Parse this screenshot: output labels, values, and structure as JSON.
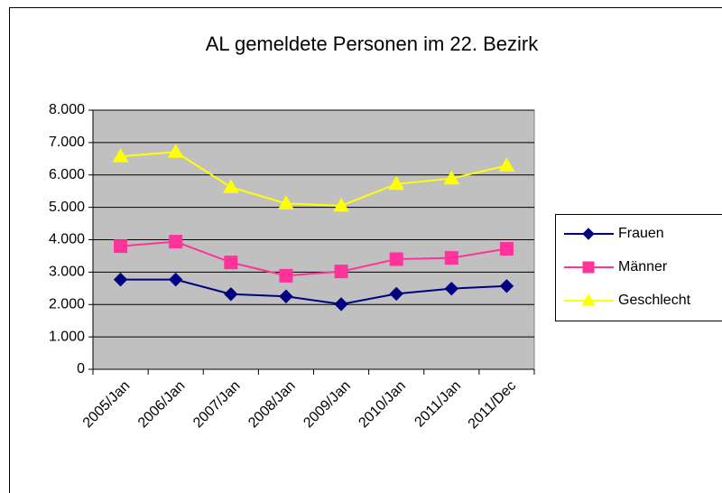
{
  "chart_data": {
    "type": "line",
    "title": "AL gemeldete Personen im 22. Bezirk",
    "categories": [
      "2005/Jan",
      "2006/Jan",
      "2007/Jan",
      "2008/Jan",
      "2009/Jan",
      "2010/Jan",
      "2011/Jan",
      "2011/Dec"
    ],
    "series": [
      {
        "name": "Frauen",
        "color": "#000080",
        "marker": "diamond",
        "values": [
          2770,
          2770,
          2320,
          2250,
          2010,
          2330,
          2490,
          2570
        ]
      },
      {
        "name": "Männer",
        "color": "#ff3399",
        "marker": "square",
        "values": [
          3800,
          3940,
          3300,
          2890,
          3020,
          3400,
          3440,
          3720
        ]
      },
      {
        "name": "Geschlecht",
        "color": "#ffff00",
        "marker": "triangle",
        "values": [
          6570,
          6710,
          5620,
          5120,
          5050,
          5720,
          5890,
          6290
        ]
      }
    ],
    "ylim": [
      0,
      8000
    ],
    "yticks": [
      0,
      {
        "value": 1000,
        "label": "1.000"
      },
      {
        "value": 2000,
        "label": "2.000"
      },
      {
        "value": 3000,
        "label": "3.000"
      },
      {
        "value": 4000,
        "label": "4.000"
      },
      {
        "value": 5000,
        "label": "5.000"
      },
      {
        "value": 6000,
        "label": "6.000"
      },
      {
        "value": 7000,
        "label": "7.000"
      },
      {
        "value": 8000,
        "label": "8.000"
      }
    ],
    "grid": true,
    "plot_background": "#c0c0c0",
    "legend": "right"
  }
}
